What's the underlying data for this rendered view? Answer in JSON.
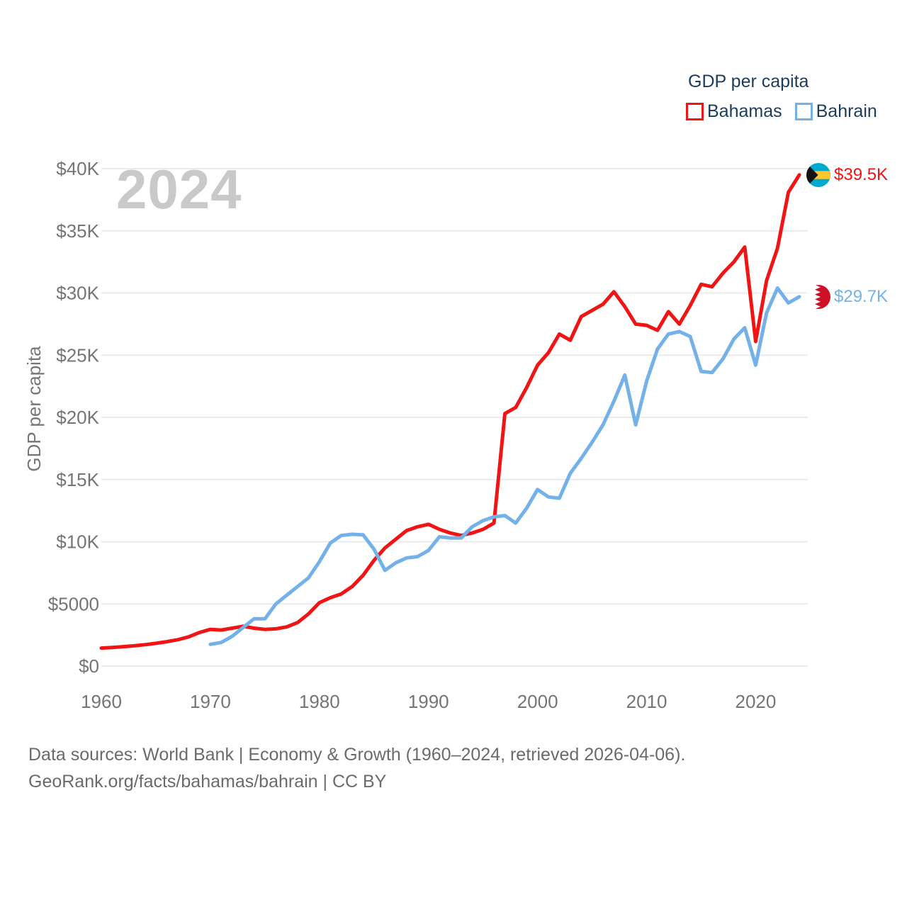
{
  "watermark": "2024",
  "legend": {
    "title": "GDP per capita",
    "items": [
      {
        "label": "Bahamas",
        "color": "#f01414"
      },
      {
        "label": "Bahrain",
        "color": "#74b1e8"
      }
    ]
  },
  "y_axis_title": "GDP per capita",
  "end_labels": [
    {
      "series": "Bahamas",
      "text": "$39.5K",
      "color": "#f01414",
      "flag": "bahamas"
    },
    {
      "series": "Bahrain",
      "text": "$29.7K",
      "color": "#74b1e8",
      "flag": "bahrain"
    }
  ],
  "source": {
    "line1": "Data sources: World Bank | Economy & Growth (1960–2024, retrieved 2026-04-06).",
    "line2": "GeoRank.org/facts/bahamas/bahrain | CC BY"
  },
  "colors": {
    "bahamas_red": "#f01414",
    "bahrain_blue": "#74b1e8",
    "legend_navy": "#1c3c5e",
    "grid": "#ebebeb",
    "tick_text": "#757575",
    "watermark_gray": "#c9c9c9",
    "source_gray": "#6b6b6b",
    "bahamas_flag_aqua": "#00a9ce",
    "bahamas_flag_gold": "#ffc72c",
    "bahamas_flag_black": "#141414",
    "bahrain_flag_red": "#ce1126"
  },
  "chart_data": {
    "type": "line",
    "title": "GDP per capita",
    "ylabel": "GDP per capita",
    "xlabel": "",
    "xlim": [
      1960,
      2024
    ],
    "ylim": [
      0,
      40000
    ],
    "grid": "horizontal",
    "legend_position": "top-right",
    "current_year": 2024,
    "yticks": [
      {
        "label": "$0",
        "value": 0
      },
      {
        "label": "$5000",
        "value": 5000
      },
      {
        "label": "$10K",
        "value": 10000
      },
      {
        "label": "$15K",
        "value": 15000
      },
      {
        "label": "$20K",
        "value": 20000
      },
      {
        "label": "$25K",
        "value": 25000
      },
      {
        "label": "$30K",
        "value": 30000
      },
      {
        "label": "$35K",
        "value": 35000
      },
      {
        "label": "$40K",
        "value": 40000
      }
    ],
    "xticks": [
      {
        "label": "1960",
        "value": 1960
      },
      {
        "label": "1970",
        "value": 1970
      },
      {
        "label": "1980",
        "value": 1980
      },
      {
        "label": "1990",
        "value": 1990
      },
      {
        "label": "2000",
        "value": 2000
      },
      {
        "label": "2010",
        "value": 2010
      },
      {
        "label": "2020",
        "value": 2020
      }
    ],
    "series": [
      {
        "name": "Bahamas",
        "color": "#f01414",
        "start_year": 1960,
        "end_value_label": "$39.5K",
        "values": [
          1450,
          1500,
          1560,
          1630,
          1720,
          1830,
          1960,
          2120,
          2350,
          2700,
          2950,
          2900,
          3050,
          3200,
          3050,
          2950,
          3000,
          3150,
          3500,
          4200,
          5100,
          5500,
          5800,
          6400,
          7300,
          8500,
          9500,
          10200,
          10900,
          11200,
          11400,
          11000,
          10700,
          10500,
          10700,
          11000,
          11500,
          20300,
          20800,
          22400,
          24200,
          25200,
          26700,
          26200,
          28100,
          28600,
          29100,
          30100,
          28900,
          27500,
          27400,
          27000,
          28500,
          27500,
          29000,
          30700,
          30500,
          31600,
          32500,
          33700,
          26100,
          31000,
          33600,
          38100,
          39500
        ]
      },
      {
        "name": "Bahrain",
        "color": "#74b1e8",
        "start_year": 1970,
        "end_value_label": "$29.7K",
        "values": [
          1750,
          1900,
          2400,
          3100,
          3800,
          3800,
          5000,
          5700,
          6400,
          7100,
          8400,
          9900,
          10500,
          10600,
          10550,
          9400,
          7700,
          8300,
          8700,
          8800,
          9300,
          10400,
          10300,
          10300,
          11200,
          11700,
          12000,
          12100,
          11500,
          12700,
          14200,
          13600,
          13500,
          15500,
          16700,
          18000,
          19400,
          21300,
          23400,
          19400,
          22900,
          25500,
          26700,
          26900,
          26500,
          23700,
          23600,
          24700,
          26300,
          27200,
          24200,
          28400,
          30400,
          29200,
          29700
        ]
      }
    ]
  }
}
